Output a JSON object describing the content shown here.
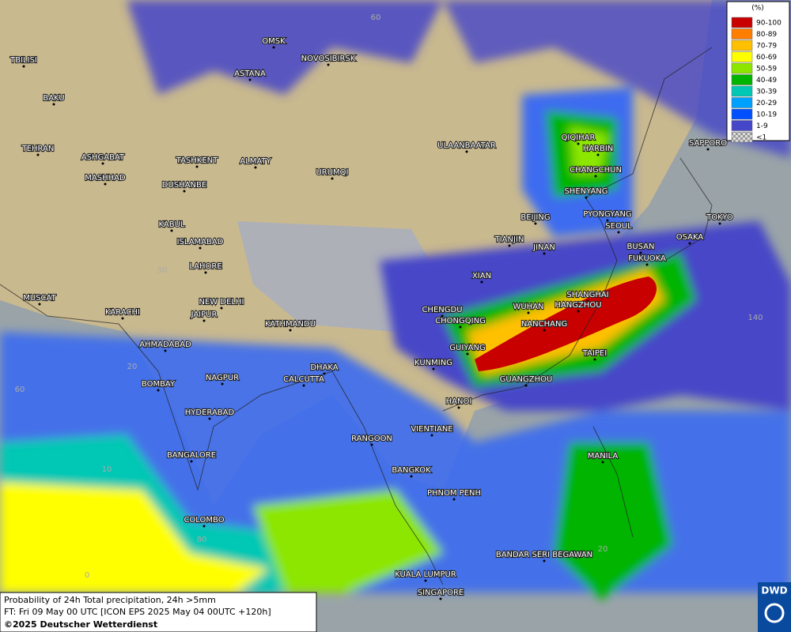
{
  "map": {
    "cities": [
      "OMSK",
      "NOVOSIBIRSK",
      "ASTANA",
      "TBILISI",
      "BAKU",
      "TEHRAN",
      "ASHGABAT",
      "MASHHAD",
      "TASHKENT",
      "ALMATY",
      "DUSHANBE",
      "URUMQI",
      "ULAANBAATAR",
      "QIQIHAR",
      "HARBIN",
      "CHANGCHUN",
      "SHENYANG",
      "BEIJING",
      "PYONGYANG",
      "SEOUL",
      "TOKYO",
      "SAPPORO",
      "OSAKA",
      "FUKUOKA",
      "BUSAN",
      "TIANJIN",
      "JINAN",
      "XIAN",
      "KABUL",
      "ISLAMABAD",
      "LAHORE",
      "NEW DELHI",
      "JAIPUR",
      "KARACHI",
      "MUSCAT",
      "AHMADABAD",
      "KATHMANDU",
      "CHENGDU",
      "CHONGQING",
      "WUHAN",
      "SHANGHAI",
      "HANGZHOU",
      "NANCHANG",
      "GUIYANG",
      "KUNMING",
      "TAIPEI",
      "GUANGZHOU",
      "DHAKA",
      "CALCUTTA",
      "NAGPUR",
      "BOMBAY",
      "HYDERABAD",
      "HANOI",
      "VIENTIANE",
      "RANGOON",
      "BANGALORE",
      "MANILA",
      "BANGKOK",
      "PHNOM PENH",
      "COLOMBO",
      "BANDAR SERI BEGAWAN",
      "KUALA LUMPUR",
      "SINGAPORE"
    ],
    "graticule_labels": [
      "60",
      "30",
      "20",
      "10",
      "0",
      "60",
      "80",
      "140",
      "20"
    ],
    "legend": {
      "title": "(%)",
      "items": [
        {
          "label": "90-100",
          "color": "#c80000"
        },
        {
          "label": "80-89",
          "color": "#ff7d00"
        },
        {
          "label": "70-79",
          "color": "#ffc000"
        },
        {
          "label": "60-69",
          "color": "#ffff00"
        },
        {
          "label": "50-59",
          "color": "#8ce600"
        },
        {
          "label": "40-49",
          "color": "#00b400"
        },
        {
          "label": "30-39",
          "color": "#00c8b4"
        },
        {
          "label": "20-29",
          "color": "#00a0ff"
        },
        {
          "label": "10-19",
          "color": "#0050ff"
        },
        {
          "label": "1-9",
          "color": "#4646c8"
        },
        {
          "label": "<1",
          "color": "#b4b4b4"
        }
      ]
    },
    "info": [
      "Probability of 24h Total precipitation, 24h >5mm",
      "FT: Fri 09 May 00 UTC [ICON EPS 2025 May 04 00UTC +120h]",
      "©2025 Deutscher Wetterdienst"
    ],
    "logo": "DWD"
  }
}
